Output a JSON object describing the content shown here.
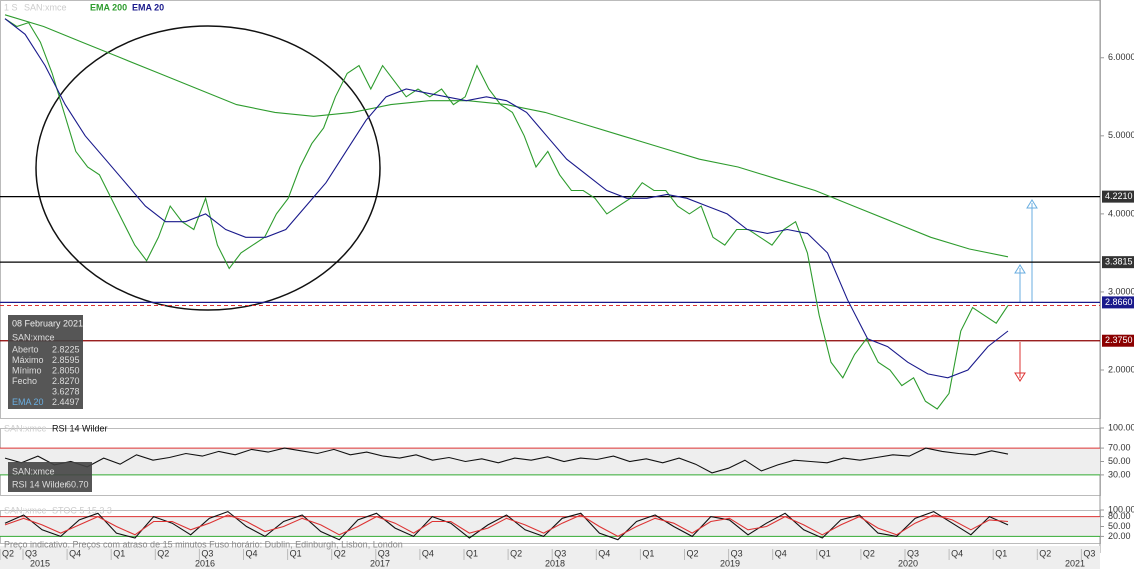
{
  "chart_data": [
    {
      "type": "line",
      "title": "SAN:xmce",
      "ticker_prefix": "1 S",
      "ylim": [
        1.385,
        6.74
      ],
      "yticks": [
        {
          "value": 6,
          "label": "6.0000"
        },
        {
          "value": 5,
          "label": "5.0000"
        },
        {
          "value": 4,
          "label": "4.0000"
        },
        {
          "value": 3,
          "label": "3.0000"
        },
        {
          "value": 2,
          "label": "2.0000"
        }
      ],
      "series": [
        {
          "name": "SAN:xmce",
          "color": "#2e9c2e",
          "values": [
            6.5,
            6.4,
            6.45,
            6.2,
            5.8,
            5.3,
            4.8,
            4.6,
            4.5,
            4.2,
            3.9,
            3.6,
            3.4,
            3.7,
            4.1,
            3.9,
            3.8,
            4.2,
            3.6,
            3.3,
            3.5,
            3.6,
            3.7,
            4.0,
            4.2,
            4.6,
            4.9,
            5.1,
            5.5,
            5.8,
            5.9,
            5.6,
            5.9,
            5.7,
            5.5,
            5.6,
            5.5,
            5.6,
            5.4,
            5.5,
            5.9,
            5.6,
            5.4,
            5.3,
            5.0,
            4.6,
            4.8,
            4.5,
            4.3,
            4.3,
            4.2,
            4.0,
            4.1,
            4.2,
            4.4,
            4.3,
            4.3,
            4.1,
            4.0,
            4.1,
            3.7,
            3.6,
            3.8,
            3.8,
            3.7,
            3.6,
            3.8,
            3.9,
            3.5,
            2.7,
            2.1,
            1.9,
            2.2,
            2.4,
            2.1,
            2.0,
            1.8,
            1.9,
            1.6,
            1.5,
            1.7,
            2.5,
            2.8,
            2.7,
            2.6,
            2.827
          ]
        },
        {
          "name": "EMA 200",
          "color": "#2e9c2e",
          "values": [
            6.55,
            6.4,
            6.2,
            6.0,
            5.8,
            5.6,
            5.4,
            5.3,
            5.25,
            5.3,
            5.4,
            5.45,
            5.45,
            5.4,
            5.3,
            5.15,
            5.0,
            4.85,
            4.7,
            4.6,
            4.45,
            4.3,
            4.1,
            3.9,
            3.7,
            3.55,
            3.45
          ]
        },
        {
          "name": "EMA 20",
          "color": "#1a1a8c",
          "values": [
            6.5,
            6.3,
            5.9,
            5.4,
            5.0,
            4.7,
            4.4,
            4.1,
            3.9,
            3.9,
            4.0,
            3.8,
            3.7,
            3.7,
            3.8,
            4.1,
            4.4,
            4.8,
            5.2,
            5.5,
            5.6,
            5.55,
            5.5,
            5.45,
            5.5,
            5.45,
            5.3,
            5.0,
            4.7,
            4.5,
            4.3,
            4.2,
            4.2,
            4.25,
            4.2,
            4.1,
            4.0,
            3.8,
            3.75,
            3.8,
            3.75,
            3.5,
            2.9,
            2.4,
            2.3,
            2.1,
            1.95,
            1.9,
            2.0,
            2.3,
            2.5
          ]
        }
      ],
      "levels": [
        {
          "value": 4.221,
          "label": "4.2210",
          "color": "#000000"
        },
        {
          "value": 3.3815,
          "label": "3.3815",
          "color": "#000000"
        },
        {
          "value": 2.866,
          "label": "2.8660",
          "color": "#1a1a8c"
        },
        {
          "value": 2.375,
          "label": "2.3750",
          "color": "#8b0000"
        }
      ],
      "last_price": 2.827,
      "info": {
        "date": "08 February 2021",
        "name": "SAN:xmce",
        "rows": [
          [
            "Aberto",
            "2.8225"
          ],
          [
            "Máximo",
            "2.8595"
          ],
          [
            "Mínimo",
            "2.8050"
          ],
          [
            "Fecho",
            "2.8270"
          ],
          [
            "",
            "3.6278"
          ],
          [
            "EMA 20",
            "2.4497"
          ]
        ]
      }
    },
    {
      "type": "line",
      "title": "SAN:xmce",
      "subtitle": "RSI 14 Wilder",
      "ylim": [
        0,
        100
      ],
      "yticks": [
        {
          "value": 100,
          "label": "100.00"
        },
        {
          "value": 70,
          "label": "70.00"
        },
        {
          "value": 50,
          "label": "50.00"
        },
        {
          "value": 30,
          "label": "30.00"
        }
      ],
      "bands": [
        {
          "value": 70,
          "color": "#d33"
        },
        {
          "value": 30,
          "color": "#3a3"
        }
      ],
      "series": [
        {
          "name": "RSI 14 Wilder",
          "color": "#111",
          "values": [
            55,
            48,
            58,
            45,
            50,
            42,
            55,
            46,
            60,
            52,
            56,
            62,
            58,
            65,
            60,
            68,
            64,
            70,
            66,
            62,
            68,
            60,
            64,
            58,
            55,
            60,
            52,
            56,
            50,
            54,
            48,
            55,
            52,
            57,
            50,
            55,
            53,
            58,
            50,
            54,
            48,
            55,
            46,
            33,
            40,
            52,
            36,
            45,
            52,
            50,
            48,
            55,
            52,
            56,
            60,
            58,
            70,
            65,
            62,
            60,
            66,
            61
          ]
        }
      ],
      "info": {
        "name": "SAN:xmce",
        "label": "RSI 14 Wilder",
        "value": "60.70"
      }
    },
    {
      "type": "line",
      "title": "SAN:xmce",
      "subtitle": "STOC 5 15 3 3",
      "ylim": [
        0,
        100
      ],
      "yticks": [
        {
          "value": 100,
          "label": "100.00"
        },
        {
          "value": 80,
          "label": "80.00"
        },
        {
          "value": 50,
          "label": "50.00"
        },
        {
          "value": 20,
          "label": "20.00"
        }
      ],
      "bands": [
        {
          "value": 80,
          "color": "#d33"
        },
        {
          "value": 20,
          "color": "#3a3"
        }
      ],
      "series": [
        {
          "name": "%K",
          "color": "#111",
          "values": [
            60,
            85,
            40,
            20,
            70,
            90,
            30,
            15,
            80,
            60,
            25,
            75,
            95,
            50,
            20,
            65,
            85,
            35,
            10,
            70,
            90,
            45,
            20,
            80,
            60,
            15,
            55,
            85,
            40,
            20,
            75,
            90,
            30,
            10,
            65,
            85,
            50,
            20,
            80,
            70,
            25,
            60,
            90,
            40,
            15,
            70,
            85,
            30,
            20,
            75,
            95,
            60,
            25,
            80,
            55
          ]
        },
        {
          "name": "%D",
          "color": "#d33",
          "values": [
            55,
            75,
            55,
            30,
            55,
            80,
            50,
            25,
            65,
            65,
            40,
            60,
            85,
            65,
            35,
            50,
            75,
            55,
            25,
            50,
            80,
            60,
            30,
            65,
            65,
            30,
            45,
            75,
            55,
            30,
            60,
            85,
            50,
            20,
            50,
            75,
            60,
            30,
            65,
            75,
            40,
            50,
            80,
            55,
            25,
            55,
            80,
            45,
            25,
            60,
            85,
            70,
            40,
            70,
            65
          ]
        }
      ]
    }
  ],
  "x_axis": {
    "quarters": [
      "Q2",
      "Q3",
      "Q4",
      "Q1",
      "Q2",
      "Q3",
      "Q4",
      "Q1",
      "Q2",
      "Q3",
      "Q4",
      "Q1",
      "Q2",
      "Q3",
      "Q4",
      "Q1",
      "Q2",
      "Q3",
      "Q4",
      "Q1",
      "Q2",
      "Q3",
      "Q4",
      "Q1",
      "Q2",
      "Q3"
    ],
    "years": [
      "2015",
      "2016",
      "2017",
      "2018",
      "2019",
      "2020",
      "2021"
    ]
  },
  "footer": "Preço indicativo. Preços com atraso de 15 minutos    Fuso horário: Dublin, Edinburgh, Lisbon, London"
}
